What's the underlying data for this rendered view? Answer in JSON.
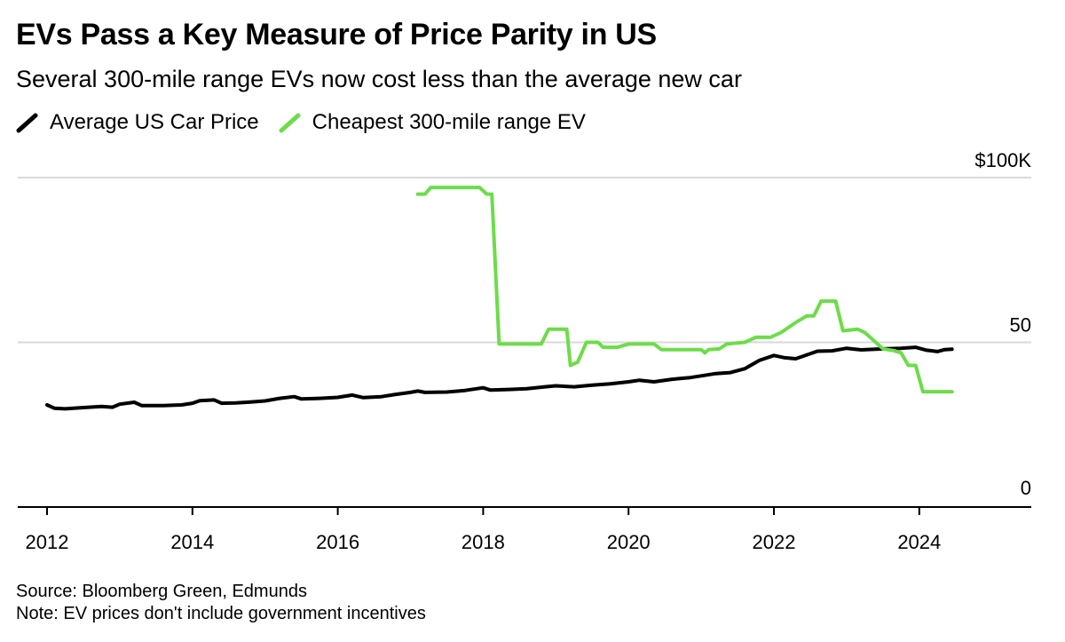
{
  "chart_data": {
    "type": "line",
    "title": "EVs Pass a Key Measure of Price Parity in US",
    "subtitle": "Several 300-mile range EVs now cost less than the average new car",
    "xlabel": "",
    "ylabel": "",
    "x_ticks": [
      "2012",
      "2014",
      "2016",
      "2018",
      "2020",
      "2022",
      "2024"
    ],
    "xlim": [
      2011.6,
      2025.6
    ],
    "y_ticks": [
      {
        "value": 0,
        "label": "0"
      },
      {
        "value": 50,
        "label": "50"
      },
      {
        "value": 100,
        "label": "$100K"
      }
    ],
    "ylim": [
      0,
      100
    ],
    "grid": true,
    "legend_position": "top-left",
    "series": [
      {
        "name": "Average US Car Price",
        "color": "#000000",
        "points": [
          [
            2012.0,
            31.0
          ],
          [
            2012.1,
            30.0
          ],
          [
            2012.25,
            29.8
          ],
          [
            2012.5,
            30.2
          ],
          [
            2012.75,
            30.5
          ],
          [
            2012.9,
            30.3
          ],
          [
            2013.0,
            31.2
          ],
          [
            2013.2,
            31.8
          ],
          [
            2013.3,
            30.8
          ],
          [
            2013.6,
            30.8
          ],
          [
            2013.85,
            31.0
          ],
          [
            2014.0,
            31.5
          ],
          [
            2014.1,
            32.3
          ],
          [
            2014.3,
            32.5
          ],
          [
            2014.4,
            31.5
          ],
          [
            2014.6,
            31.6
          ],
          [
            2014.8,
            31.9
          ],
          [
            2015.0,
            32.2
          ],
          [
            2015.2,
            33.0
          ],
          [
            2015.4,
            33.5
          ],
          [
            2015.5,
            32.8
          ],
          [
            2015.75,
            33.0
          ],
          [
            2016.0,
            33.3
          ],
          [
            2016.2,
            34.0
          ],
          [
            2016.35,
            33.2
          ],
          [
            2016.6,
            33.5
          ],
          [
            2016.8,
            34.2
          ],
          [
            2017.0,
            34.8
          ],
          [
            2017.1,
            35.2
          ],
          [
            2017.2,
            34.8
          ],
          [
            2017.5,
            34.9
          ],
          [
            2017.75,
            35.4
          ],
          [
            2018.0,
            36.2
          ],
          [
            2018.1,
            35.5
          ],
          [
            2018.35,
            35.7
          ],
          [
            2018.6,
            35.9
          ],
          [
            2018.85,
            36.5
          ],
          [
            2019.0,
            36.8
          ],
          [
            2019.25,
            36.5
          ],
          [
            2019.5,
            37.0
          ],
          [
            2019.75,
            37.4
          ],
          [
            2020.0,
            38.0
          ],
          [
            2020.15,
            38.5
          ],
          [
            2020.35,
            38.0
          ],
          [
            2020.6,
            38.8
          ],
          [
            2020.85,
            39.3
          ],
          [
            2021.0,
            39.8
          ],
          [
            2021.2,
            40.5
          ],
          [
            2021.4,
            40.8
          ],
          [
            2021.6,
            42.0
          ],
          [
            2021.8,
            44.5
          ],
          [
            2022.0,
            46.0
          ],
          [
            2022.15,
            45.3
          ],
          [
            2022.3,
            45.0
          ],
          [
            2022.6,
            47.3
          ],
          [
            2022.8,
            47.4
          ],
          [
            2023.0,
            48.2
          ],
          [
            2023.2,
            47.7
          ],
          [
            2023.5,
            48.0
          ],
          [
            2023.75,
            48.2
          ],
          [
            2023.95,
            48.5
          ],
          [
            2024.1,
            47.6
          ],
          [
            2024.25,
            47.2
          ],
          [
            2024.35,
            47.8
          ],
          [
            2024.45,
            47.9
          ]
        ]
      },
      {
        "name": "Cheapest 300-mile range EV",
        "color": "#6ddc4a",
        "points": [
          [
            2017.1,
            95.0
          ],
          [
            2017.2,
            95.0
          ],
          [
            2017.28,
            97.0
          ],
          [
            2017.95,
            97.0
          ],
          [
            2018.05,
            95.0
          ],
          [
            2018.12,
            95.0
          ],
          [
            2018.22,
            49.5
          ],
          [
            2018.8,
            49.5
          ],
          [
            2018.9,
            54.0
          ],
          [
            2019.15,
            54.0
          ],
          [
            2019.2,
            43.0
          ],
          [
            2019.3,
            44.0
          ],
          [
            2019.42,
            50.0
          ],
          [
            2019.58,
            50.0
          ],
          [
            2019.65,
            48.5
          ],
          [
            2019.85,
            48.5
          ],
          [
            2020.0,
            49.5
          ],
          [
            2020.35,
            49.5
          ],
          [
            2020.45,
            47.8
          ],
          [
            2021.0,
            47.8
          ],
          [
            2021.05,
            46.8
          ],
          [
            2021.1,
            47.8
          ],
          [
            2021.25,
            48.0
          ],
          [
            2021.35,
            49.5
          ],
          [
            2021.6,
            50.0
          ],
          [
            2021.75,
            51.5
          ],
          [
            2021.95,
            51.5
          ],
          [
            2022.1,
            53.0
          ],
          [
            2022.3,
            56.0
          ],
          [
            2022.45,
            58.0
          ],
          [
            2022.55,
            58.0
          ],
          [
            2022.65,
            62.5
          ],
          [
            2022.85,
            62.5
          ],
          [
            2022.95,
            53.5
          ],
          [
            2023.15,
            54.0
          ],
          [
            2023.25,
            53.0
          ],
          [
            2023.35,
            51.0
          ],
          [
            2023.5,
            48.0
          ],
          [
            2023.65,
            47.5
          ],
          [
            2023.75,
            46.8
          ],
          [
            2023.85,
            43.0
          ],
          [
            2023.95,
            43.0
          ],
          [
            2024.05,
            35.0
          ],
          [
            2024.25,
            35.0
          ],
          [
            2024.45,
            35.0
          ]
        ]
      }
    ],
    "source": "Source: Bloomberg Green, Edmunds",
    "note": "Note: EV prices don't include government incentives"
  }
}
